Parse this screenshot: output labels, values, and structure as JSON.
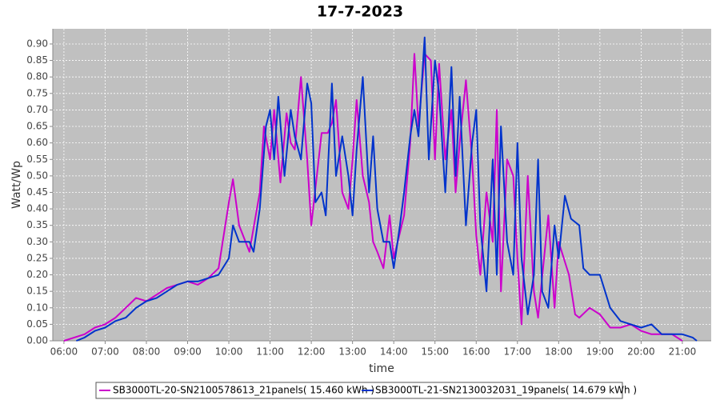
{
  "chart_data": {
    "type": "line",
    "title": "17-7-2023",
    "xlabel": "time",
    "ylabel": "Watt/Wp",
    "xlim": [
      5.73,
      21.7
    ],
    "ylim": [
      0,
      0.946
    ],
    "grid": true,
    "legend": "bottom",
    "xticks": [
      {
        "value": 6,
        "label": "06:00"
      },
      {
        "value": 7,
        "label": "07:00"
      },
      {
        "value": 8,
        "label": "08:00"
      },
      {
        "value": 9,
        "label": "09:00"
      },
      {
        "value": 10,
        "label": "10:00"
      },
      {
        "value": 11,
        "label": "11:00"
      },
      {
        "value": 12,
        "label": "12:00"
      },
      {
        "value": 13,
        "label": "13:00"
      },
      {
        "value": 14,
        "label": "14:00"
      },
      {
        "value": 15,
        "label": "15:00"
      },
      {
        "value": 16,
        "label": "16:00"
      },
      {
        "value": 17,
        "label": "17:00"
      },
      {
        "value": 18,
        "label": "18:00"
      },
      {
        "value": 19,
        "label": "19:00"
      },
      {
        "value": 20,
        "label": "20:00"
      },
      {
        "value": 21,
        "label": "21:00"
      }
    ],
    "yticks": [
      {
        "value": 0,
        "label": "0.00"
      },
      {
        "value": 0.05,
        "label": "0.05"
      },
      {
        "value": 0.1,
        "label": "0.10"
      },
      {
        "value": 0.15,
        "label": "0.15"
      },
      {
        "value": 0.2,
        "label": "0.20"
      },
      {
        "value": 0.25,
        "label": "0.25"
      },
      {
        "value": 0.3,
        "label": "0.30"
      },
      {
        "value": 0.35,
        "label": "0.35"
      },
      {
        "value": 0.4,
        "label": "0.40"
      },
      {
        "value": 0.45,
        "label": "0.45"
      },
      {
        "value": 0.5,
        "label": "0.50"
      },
      {
        "value": 0.55,
        "label": "0.55"
      },
      {
        "value": 0.6,
        "label": "0.60"
      },
      {
        "value": 0.65,
        "label": "0.65"
      },
      {
        "value": 0.7,
        "label": "0.70"
      },
      {
        "value": 0.75,
        "label": "0.75"
      },
      {
        "value": 0.8,
        "label": "0.80"
      },
      {
        "value": 0.85,
        "label": "0.85"
      },
      {
        "value": 0.9,
        "label": "0.90"
      }
    ],
    "series": [
      {
        "name": "SB3000TL-20-SN2100578613_21panels( 15.460 kWh )",
        "color": "#cc00cc",
        "x": [
          6.0,
          6.25,
          6.5,
          6.75,
          7.0,
          7.25,
          7.5,
          7.75,
          8.0,
          8.25,
          8.5,
          8.75,
          9.0,
          9.25,
          9.5,
          9.75,
          10.0,
          10.1,
          10.25,
          10.5,
          10.75,
          10.85,
          11.0,
          11.1,
          11.25,
          11.4,
          11.5,
          11.6,
          11.75,
          11.9,
          12.0,
          12.25,
          12.4,
          12.5,
          12.6,
          12.75,
          12.9,
          13.0,
          13.1,
          13.25,
          13.4,
          13.5,
          13.6,
          13.75,
          13.9,
          14.0,
          14.25,
          14.4,
          14.5,
          14.6,
          14.75,
          14.9,
          15.0,
          15.1,
          15.25,
          15.4,
          15.5,
          15.6,
          15.75,
          15.9,
          16.0,
          16.1,
          16.25,
          16.4,
          16.5,
          16.6,
          16.75,
          16.9,
          17.0,
          17.1,
          17.25,
          17.4,
          17.5,
          17.75,
          17.9,
          18.0,
          18.25,
          18.4,
          18.5,
          18.75,
          19.0,
          19.25,
          19.5,
          19.75,
          20.0,
          20.25,
          20.5,
          20.75,
          21.0
        ],
        "values": [
          0.0,
          0.01,
          0.02,
          0.04,
          0.05,
          0.07,
          0.1,
          0.13,
          0.12,
          0.14,
          0.16,
          0.17,
          0.18,
          0.17,
          0.19,
          0.22,
          0.42,
          0.49,
          0.35,
          0.27,
          0.45,
          0.65,
          0.55,
          0.7,
          0.48,
          0.69,
          0.6,
          0.58,
          0.8,
          0.55,
          0.35,
          0.63,
          0.63,
          0.66,
          0.73,
          0.45,
          0.4,
          0.55,
          0.73,
          0.5,
          0.42,
          0.3,
          0.27,
          0.22,
          0.38,
          0.25,
          0.38,
          0.6,
          0.87,
          0.65,
          0.87,
          0.85,
          0.55,
          0.84,
          0.55,
          0.7,
          0.45,
          0.6,
          0.79,
          0.55,
          0.32,
          0.2,
          0.45,
          0.3,
          0.7,
          0.15,
          0.55,
          0.5,
          0.25,
          0.05,
          0.5,
          0.15,
          0.07,
          0.38,
          0.1,
          0.3,
          0.2,
          0.08,
          0.07,
          0.1,
          0.08,
          0.04,
          0.04,
          0.05,
          0.03,
          0.02,
          0.02,
          0.02,
          0.0
        ]
      },
      {
        "name": "SB3000TL-21-SN2130032031_19panels( 14.679 kWh )",
        "color": "#0033cc",
        "x": [
          6.3,
          6.5,
          6.75,
          7.0,
          7.25,
          7.5,
          7.75,
          8.0,
          8.25,
          8.5,
          8.75,
          9.0,
          9.25,
          9.5,
          9.75,
          10.0,
          10.1,
          10.25,
          10.5,
          10.6,
          10.75,
          10.9,
          11.0,
          11.1,
          11.2,
          11.35,
          11.5,
          11.6,
          11.75,
          11.9,
          12.0,
          12.1,
          12.25,
          12.35,
          12.5,
          12.6,
          12.75,
          12.9,
          13.0,
          13.1,
          13.25,
          13.4,
          13.5,
          13.6,
          13.75,
          13.9,
          14.0,
          14.15,
          14.25,
          14.4,
          14.5,
          14.6,
          14.75,
          14.85,
          15.0,
          15.1,
          15.25,
          15.4,
          15.5,
          15.6,
          15.75,
          15.9,
          16.0,
          16.1,
          16.25,
          16.4,
          16.5,
          16.6,
          16.75,
          16.9,
          17.0,
          17.1,
          17.25,
          17.4,
          17.5,
          17.6,
          17.75,
          17.9,
          18.0,
          18.15,
          18.3,
          18.5,
          18.6,
          18.75,
          19.0,
          19.25,
          19.5,
          19.75,
          20.0,
          20.25,
          20.5,
          20.75,
          21.0,
          21.25,
          21.35
        ],
        "values": [
          0.0,
          0.01,
          0.03,
          0.04,
          0.06,
          0.07,
          0.1,
          0.12,
          0.13,
          0.15,
          0.17,
          0.18,
          0.18,
          0.19,
          0.2,
          0.25,
          0.35,
          0.3,
          0.3,
          0.27,
          0.4,
          0.65,
          0.7,
          0.55,
          0.74,
          0.5,
          0.7,
          0.62,
          0.55,
          0.78,
          0.72,
          0.42,
          0.45,
          0.38,
          0.78,
          0.5,
          0.62,
          0.5,
          0.38,
          0.58,
          0.8,
          0.45,
          0.62,
          0.4,
          0.3,
          0.3,
          0.22,
          0.35,
          0.45,
          0.62,
          0.7,
          0.62,
          0.92,
          0.55,
          0.85,
          0.75,
          0.45,
          0.83,
          0.5,
          0.74,
          0.35,
          0.6,
          0.7,
          0.35,
          0.15,
          0.55,
          0.2,
          0.65,
          0.3,
          0.2,
          0.6,
          0.25,
          0.08,
          0.2,
          0.55,
          0.15,
          0.1,
          0.35,
          0.25,
          0.44,
          0.37,
          0.35,
          0.22,
          0.2,
          0.2,
          0.1,
          0.06,
          0.05,
          0.04,
          0.05,
          0.02,
          0.02,
          0.02,
          0.01,
          0.0
        ]
      }
    ]
  }
}
